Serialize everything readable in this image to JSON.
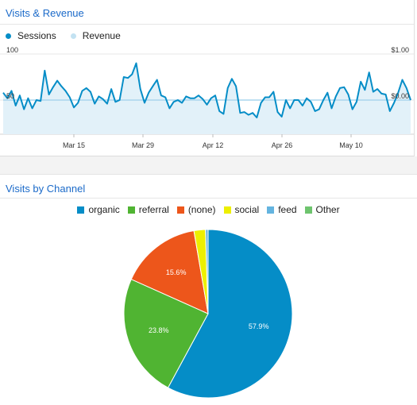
{
  "top_panel": {
    "title": "Visits & Revenue"
  },
  "bottom_panel": {
    "title": "Visits by Channel"
  },
  "chart_data": [
    {
      "type": "line",
      "title": "Visits & Revenue",
      "series": [
        {
          "name": "Sessions",
          "color": "#058dc7",
          "values": [
            58,
            52,
            60,
            44,
            55,
            40,
            52,
            41,
            50,
            49,
            82,
            56,
            64,
            71,
            65,
            60,
            53,
            42,
            47,
            60,
            63,
            59,
            46,
            54,
            51,
            46,
            62,
            48,
            50,
            75,
            74,
            78,
            90,
            62,
            47,
            58,
            65,
            72,
            55,
            53,
            41,
            48,
            50,
            47,
            54,
            52,
            52,
            55,
            51,
            45,
            52,
            55,
            38,
            35,
            63,
            73,
            65,
            36,
            37,
            34,
            36,
            31,
            47,
            53,
            53,
            59,
            37,
            32,
            50,
            41,
            50,
            50,
            44,
            52,
            48,
            38,
            40,
            50,
            58,
            41,
            54,
            63,
            64,
            56,
            40,
            48,
            70,
            61,
            80,
            59,
            62,
            57,
            56,
            38,
            47,
            58,
            72,
            63,
            50
          ]
        },
        {
          "name": "Revenue",
          "color": "#c3e2f2",
          "values": []
        }
      ],
      "ylim": [
        0,
        100
      ],
      "y_ticks_left": [
        "100",
        "50"
      ],
      "y_ticks_right": [
        "$1.00",
        "$0.00"
      ],
      "x_ticks": [
        "Mar 15",
        "Mar 29",
        "Apr 12",
        "Apr 26",
        "May 10"
      ],
      "revenue_level": 50,
      "grid": true
    },
    {
      "type": "pie",
      "title": "Visits by Channel",
      "legend": "top",
      "slices": [
        {
          "label": "organic",
          "value": 57.9,
          "color": "#058dc7",
          "text": "57.9%"
        },
        {
          "label": "referral",
          "value": 23.8,
          "color": "#50b432",
          "text": "23.8%"
        },
        {
          "label": "(none)",
          "value": 15.6,
          "color": "#ed561b",
          "text": "15.6%"
        },
        {
          "label": "social",
          "value": 2.2,
          "color": "#edef00",
          "text": ""
        },
        {
          "label": "feed",
          "value": 0.5,
          "color": "#64b4e0",
          "text": ""
        },
        {
          "label": "Other",
          "value": 0.0,
          "color": "#6ec46e",
          "text": ""
        }
      ]
    }
  ]
}
